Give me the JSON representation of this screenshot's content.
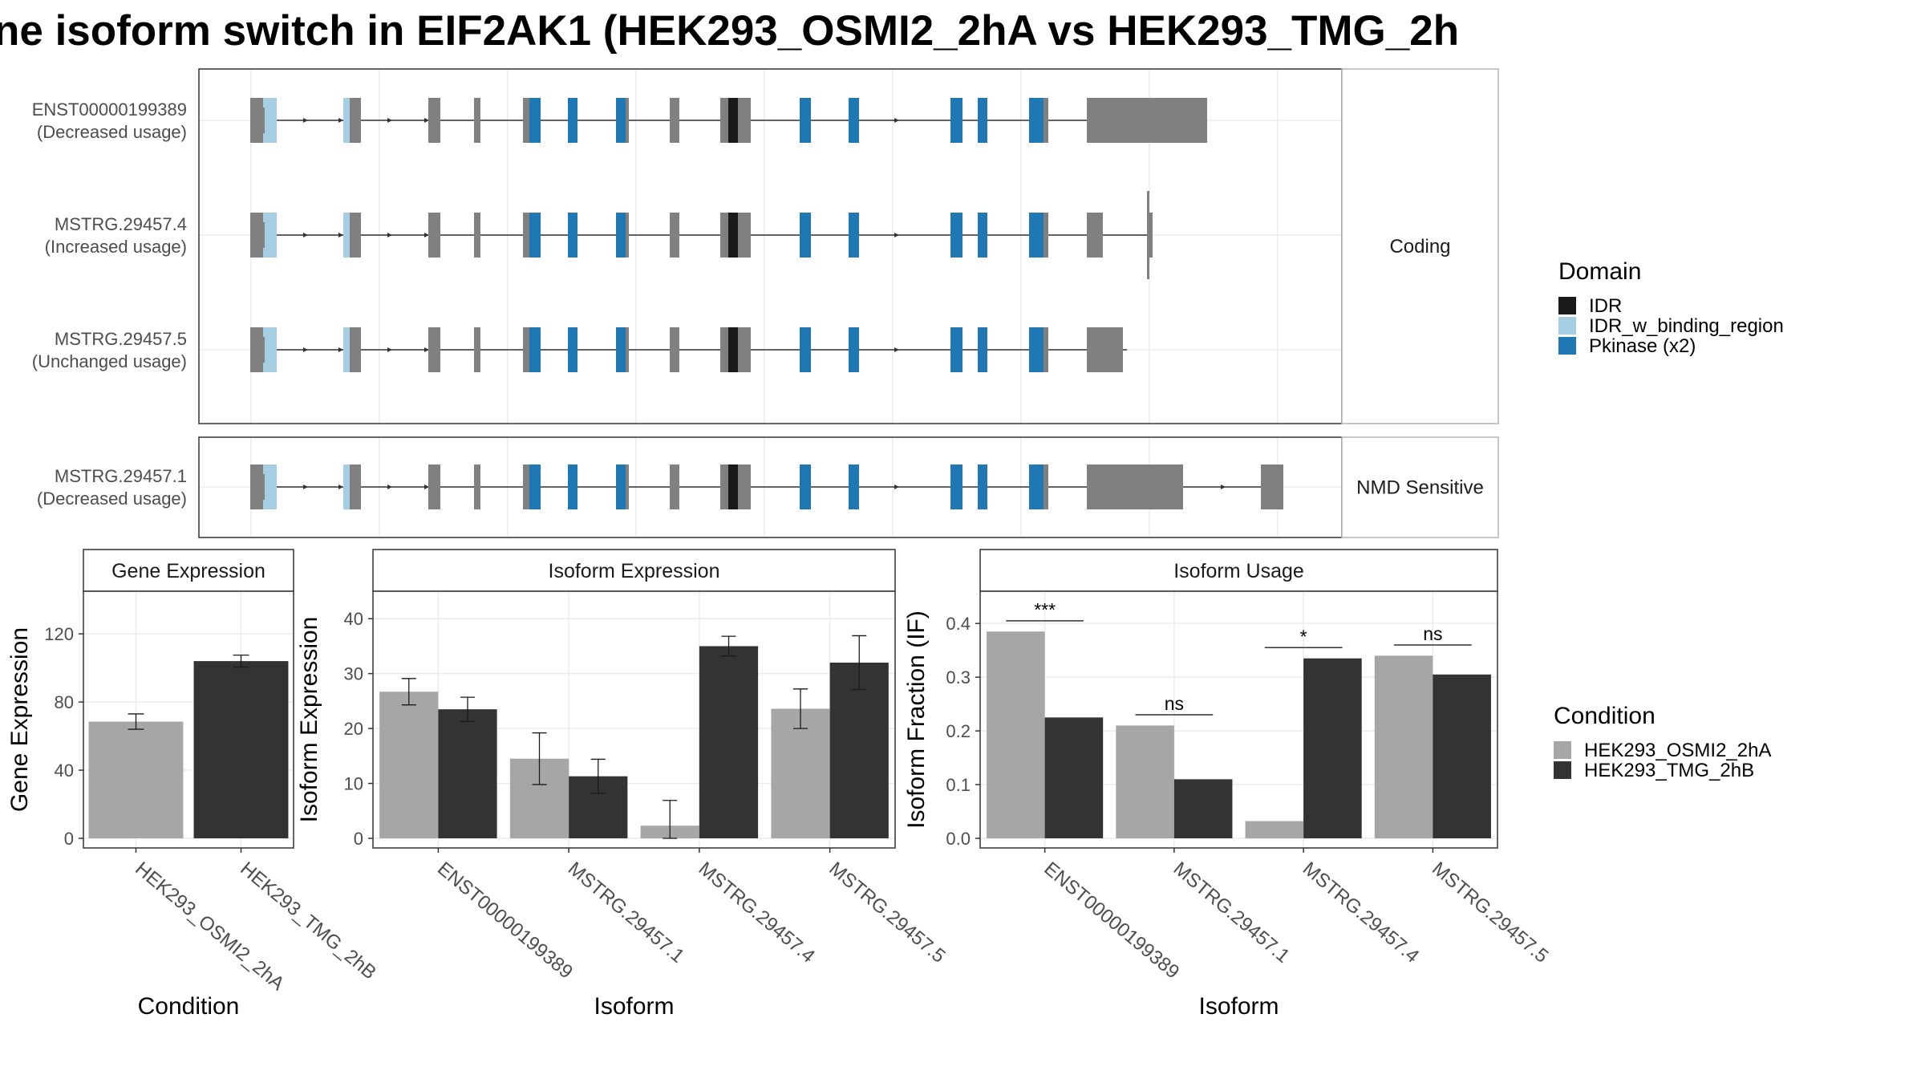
{
  "title": "ne isoform switch in EIF2AK1 (HEK293_OSMI2_2hA vs HEK293_TMG_2h",
  "colors": {
    "exon": "#808080",
    "IDR": "#1a1a1a",
    "IDR_w_binding_region": "#a6cee3",
    "Pkinase (x2)": "#1f78b4",
    "cond1": "#a6a6a6",
    "cond2": "#333333",
    "panel_border": "#333333",
    "strip_border": "#b3b3b3",
    "grid_major": "#ebebeb"
  },
  "structure": {
    "panels": [
      {
        "strip": "Coding",
        "isoforms": [
          {
            "name": "ENST00000199389",
            "usage": "(Decreased usage)",
            "tail": "long"
          },
          {
            "name": "MSTRG.29457.4",
            "usage": "(Increased usage)",
            "tail": "tiny"
          },
          {
            "name": "MSTRG.29457.5",
            "usage": "(Unchanged usage)",
            "tail": "short"
          }
        ]
      },
      {
        "strip": "NMD Sensitive",
        "isoforms": [
          {
            "name": "MSTRG.29457.1",
            "usage": "(Decreased usage)",
            "tail": "nmd"
          }
        ]
      }
    ]
  },
  "legend_domain": {
    "title": "Domain",
    "items": [
      {
        "label": "IDR",
        "color": "#1a1a1a"
      },
      {
        "label": "IDR_w_binding_region",
        "color": "#a6cee3"
      },
      {
        "label": "Pkinase (x2)",
        "color": "#1f78b4"
      }
    ]
  },
  "legend_condition": {
    "title": "Condition",
    "items": [
      {
        "label": "HEK293_OSMI2_2hA",
        "color": "#a6a6a6"
      },
      {
        "label": "HEK293_TMG_2hB",
        "color": "#333333"
      }
    ]
  },
  "chart_data": [
    {
      "type": "bar",
      "title": "Gene Expression",
      "xlabel": "Condition",
      "ylabel": "Gene Expression",
      "ylim": [
        0,
        145
      ],
      "yticks": [
        0,
        40,
        80,
        120
      ],
      "categories": [
        "HEK293_OSMI2_2hA",
        "HEK293_TMG_2hB"
      ],
      "values": [
        68.5,
        104
      ],
      "errors": [
        4.5,
        3.5
      ]
    },
    {
      "type": "bar",
      "title": "Isoform Expression",
      "xlabel": "Isoform",
      "ylabel": "Isoform Expression",
      "ylim": [
        0,
        45
      ],
      "yticks": [
        0,
        10,
        20,
        30,
        40
      ],
      "categories": [
        "ENST00000199389",
        "MSTRG.29457.1",
        "MSTRG.29457.4",
        "MSTRG.29457.5"
      ],
      "series": [
        {
          "name": "HEK293_OSMI2_2hA",
          "values": [
            26.7,
            14.5,
            2.3,
            23.6
          ],
          "errors": [
            2.4,
            4.7,
            4.6,
            3.6
          ]
        },
        {
          "name": "HEK293_TMG_2hB",
          "values": [
            23.5,
            11.3,
            35,
            32
          ],
          "errors": [
            2.2,
            3.1,
            1.8,
            4.9
          ]
        }
      ]
    },
    {
      "type": "bar",
      "title": "Isoform Usage",
      "xlabel": "Isoform",
      "ylabel": "Isoform Fraction (IF)",
      "ylim": [
        0,
        0.46
      ],
      "yticks": [
        "0.0",
        "0.1",
        "0.2",
        "0.3",
        "0.4"
      ],
      "categories": [
        "ENST00000199389",
        "MSTRG.29457.1",
        "MSTRG.29457.4",
        "MSTRG.29457.5"
      ],
      "series": [
        {
          "name": "HEK293_OSMI2_2hA",
          "values": [
            0.385,
            0.21,
            0.032,
            0.34
          ]
        },
        {
          "name": "HEK293_TMG_2hB",
          "values": [
            0.225,
            0.11,
            0.335,
            0.305
          ]
        }
      ],
      "significance": [
        "***",
        "ns",
        "*",
        "ns"
      ],
      "significance_y": [
        0.405,
        0.23,
        0.355,
        0.36
      ]
    }
  ]
}
